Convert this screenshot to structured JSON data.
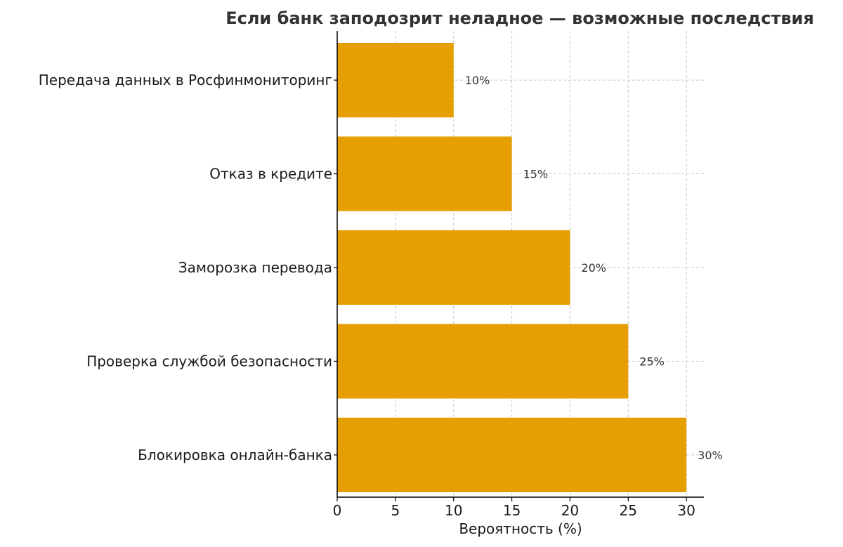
{
  "chart_data": {
    "type": "bar",
    "orientation": "horizontal",
    "title": "Если банк заподозрит неладное — возможные последствия",
    "xlabel": "Вероятность (%)",
    "ylabel": "",
    "categories": [
      "Передача данных в Росфинмониторинг",
      "Отказ в кредите",
      "Заморозка перевода",
      "Проверка службой безопасности",
      "Блокировка онлайн-банка"
    ],
    "values": [
      10,
      15,
      20,
      25,
      30
    ],
    "data_labels": [
      "10%",
      "15%",
      "20%",
      "25%",
      "30%"
    ],
    "xlim": [
      0,
      31.5
    ],
    "xticks": [
      0,
      5,
      10,
      15,
      20,
      25,
      30
    ],
    "grid": true,
    "colors": {
      "bar": "#E69F00",
      "grid": "#c8c8c8",
      "text": "#1a1a1a"
    }
  }
}
